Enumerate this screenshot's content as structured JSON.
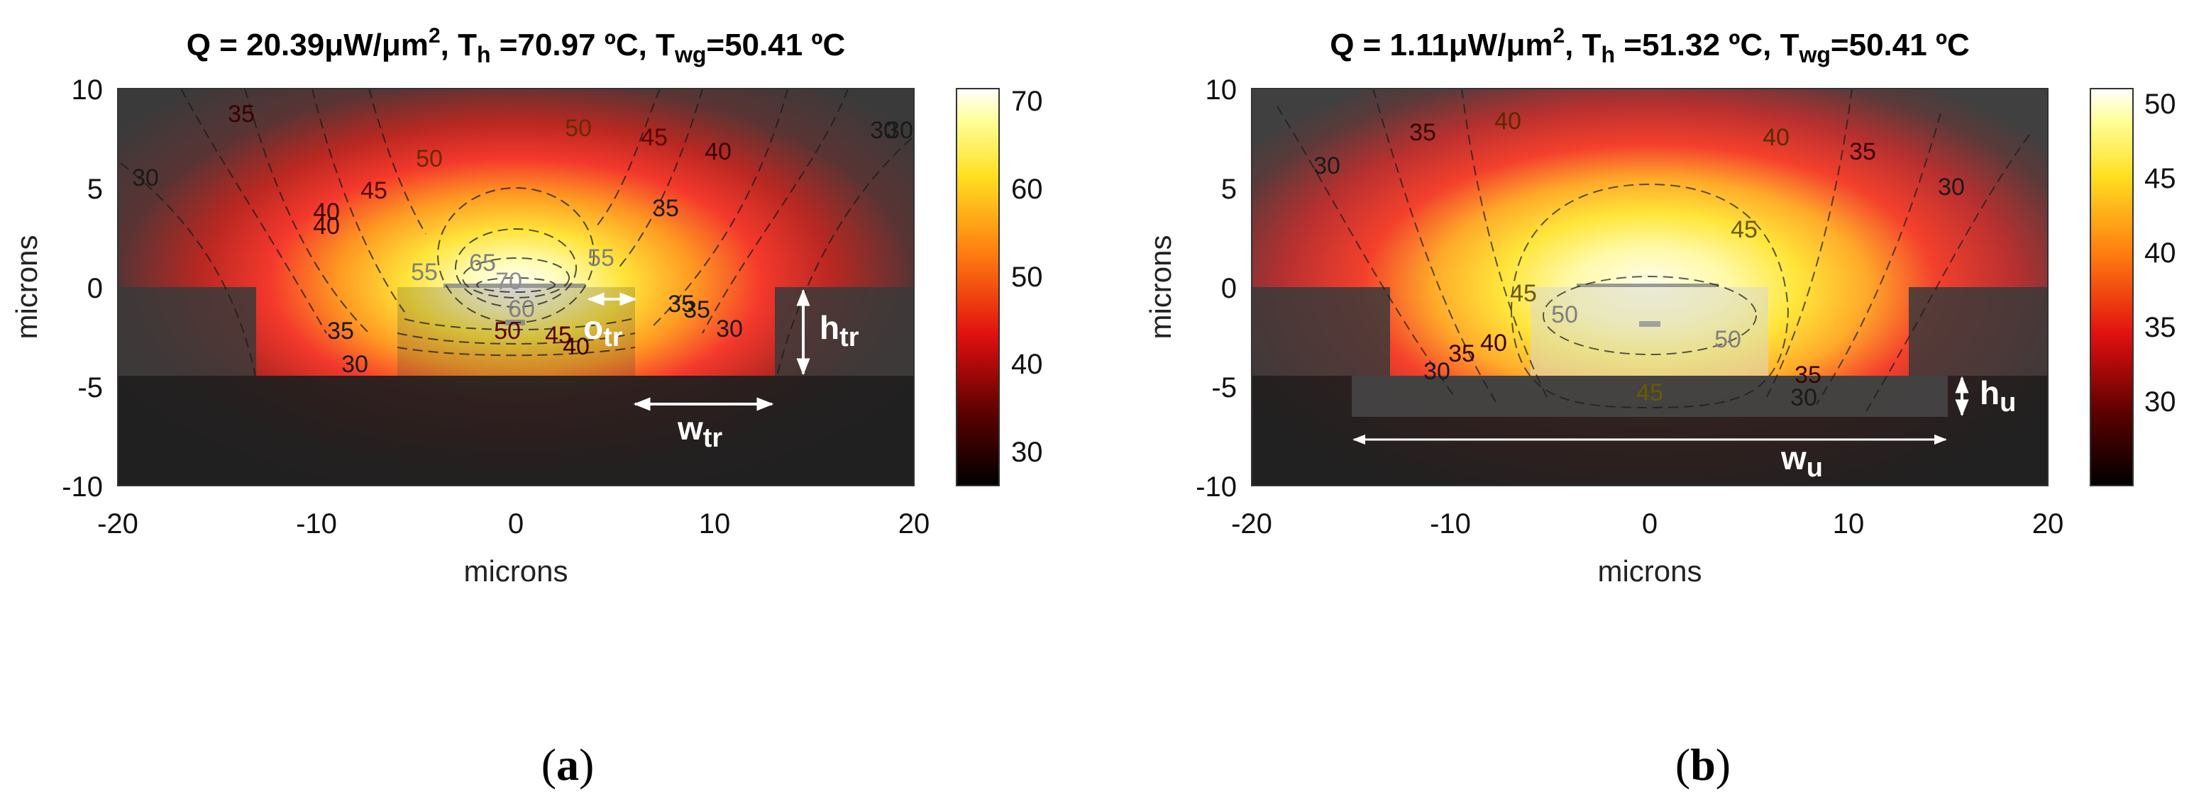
{
  "chart_data": [
    {
      "id": "a",
      "type": "heatmap",
      "title": {
        "q": "Q = 20.39μW/μm",
        "q_sup": "2",
        "sep1": ", T",
        "th_sub": "h",
        "th_val": " =70.97 ºC, T",
        "twg_sub": "wg",
        "twg_val": "=50.41 ºC"
      },
      "xlabel": "microns",
      "ylabel": "microns",
      "xlim": [
        -20,
        20
      ],
      "ylim": [
        -10,
        10
      ],
      "xticks": [
        "-20",
        "-10",
        "0",
        "10",
        "20"
      ],
      "yticks": [
        "10",
        "5",
        "0",
        "-5",
        "-10"
      ],
      "colorbar": {
        "min": 26,
        "max": 71.5,
        "ticks": [
          "70",
          "60",
          "50",
          "40",
          "30"
        ]
      },
      "hotspot": {
        "x": 0,
        "y": -1,
        "peak_c": 70.97
      },
      "contour_labels": [
        "30",
        "35",
        "35",
        "40",
        "45",
        "50",
        "50",
        "45",
        "40",
        "35",
        "30",
        "65",
        "70",
        "55",
        "55",
        "60",
        "50",
        "45",
        "40",
        "35",
        "30",
        "35",
        "30",
        "30",
        "40"
      ],
      "annotations": [
        {
          "base": "o",
          "sub": "tr"
        },
        {
          "base": "h",
          "sub": "tr"
        },
        {
          "base": "w",
          "sub": "tr"
        }
      ],
      "caption": {
        "open": "(",
        "letter": "a",
        "close": ")"
      }
    },
    {
      "id": "b",
      "type": "heatmap",
      "title": {
        "q": "Q = 1.11μW/μm",
        "q_sup": "2",
        "sep1": ", T",
        "th_sub": "h",
        "th_val": " =51.32 ºC, T",
        "twg_sub": "wg",
        "twg_val": "=50.41 ºC"
      },
      "xlabel": "microns",
      "ylabel": "microns",
      "xlim": [
        -20,
        20
      ],
      "ylim": [
        -10,
        10
      ],
      "xticks": [
        "-20",
        "-10",
        "0",
        "10",
        "20"
      ],
      "yticks": [
        "10",
        "5",
        "0",
        "-5",
        "-10"
      ],
      "colorbar": {
        "min": 25,
        "max": 51.8,
        "ticks": [
          "50",
          "45",
          "40",
          "35",
          "30"
        ]
      },
      "hotspot": {
        "x": 0,
        "y": -1.5,
        "peak_c": 51.32
      },
      "contour_labels": [
        "30",
        "35",
        "40",
        "40",
        "35",
        "30",
        "45",
        "45",
        "50",
        "50",
        "45",
        "40",
        "35",
        "35",
        "30",
        "30"
      ],
      "annotations": [
        {
          "base": "h",
          "sub": "u"
        },
        {
          "base": "w",
          "sub": "u"
        }
      ],
      "caption": {
        "open": "(",
        "letter": "b",
        "close": ")"
      }
    }
  ],
  "colors": {
    "black": "#000000",
    "dark_red": "#8b0000",
    "red": "#ff1a1a",
    "orange": "#ff8c1a",
    "yellow": "#ffee22",
    "pale": "#ffffd0",
    "white": "#ffffff"
  }
}
